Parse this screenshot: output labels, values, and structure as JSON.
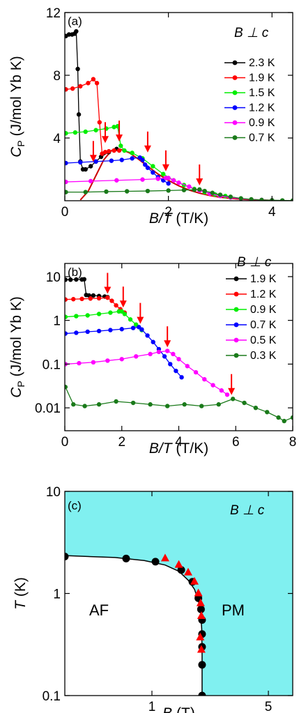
{
  "chart_data": [
    {
      "panel": "a",
      "panel_label": "(a)",
      "type": "line",
      "title": "",
      "xlabel": "B/T (T/K)",
      "ylabel": "C_P (J/mol Yb K)",
      "x_scale": "linear",
      "y_scale": "linear",
      "xlim": [
        0,
        4.4
      ],
      "ylim": [
        0,
        12
      ],
      "xticks": [
        0,
        2,
        4
      ],
      "xtick_labels": [
        "0",
        "2",
        "4"
      ],
      "yticks": [
        4,
        8,
        12
      ],
      "ytick_labels": [
        "4",
        "8",
        "12"
      ],
      "legend_title": "B ⊥ c",
      "legend_position": "right",
      "series": [
        {
          "name": "2.3 K",
          "color": "#000000",
          "x": [
            0.02,
            0.08,
            0.14,
            0.19,
            0.22,
            0.25,
            0.27,
            0.3,
            0.35,
            0.4,
            0.5,
            0.6,
            0.7,
            0.85,
            1.0
          ],
          "y": [
            10.5,
            10.6,
            10.6,
            10.65,
            10.8,
            8.4,
            5.5,
            2.5,
            2.0,
            2.0,
            2.2,
            2.5,
            2.8,
            3.1,
            3.3
          ]
        },
        {
          "name": "1.9 K",
          "color": "#ff0000",
          "x": [
            0.02,
            0.15,
            0.3,
            0.45,
            0.55,
            0.62,
            0.67,
            0.72,
            0.78,
            0.85,
            0.95,
            1.05
          ],
          "y": [
            7.1,
            7.15,
            7.3,
            7.5,
            7.75,
            7.5,
            5.0,
            3.0,
            3.1,
            3.15,
            3.2,
            3.2
          ]
        },
        {
          "name": "1.5 K",
          "color": "#00ee00",
          "x": [
            0.02,
            0.2,
            0.4,
            0.6,
            0.8,
            0.95,
            1.02,
            1.08,
            1.15,
            1.3,
            1.5,
            1.7,
            1.9,
            2.1,
            2.3,
            2.5,
            2.7,
            2.9,
            3.1
          ],
          "y": [
            4.3,
            4.35,
            4.4,
            4.5,
            4.6,
            4.7,
            4.75,
            3.5,
            3.2,
            3.05,
            2.7,
            2.2,
            1.7,
            1.3,
            1.0,
            0.75,
            0.55,
            0.4,
            0.3
          ]
        },
        {
          "name": "1.2 K",
          "color": "#0000ff",
          "x": [
            0.02,
            0.3,
            0.6,
            0.9,
            1.1,
            1.3,
            1.45,
            1.5,
            1.55,
            1.6,
            1.7,
            1.8,
            1.9,
            2.0
          ],
          "y": [
            2.4,
            2.45,
            2.5,
            2.55,
            2.6,
            2.7,
            2.75,
            2.6,
            2.3,
            2.1,
            1.8,
            1.5,
            1.3,
            1.1
          ]
        },
        {
          "name": "0.9 K",
          "color": "#ff00ff",
          "x": [
            0.02,
            0.5,
            1.0,
            1.5,
            1.8,
            1.95,
            2.0,
            2.1,
            2.2,
            2.4,
            2.6,
            2.8,
            3.0,
            3.2,
            3.4,
            3.6,
            3.8,
            4.0
          ],
          "y": [
            1.2,
            1.25,
            1.3,
            1.35,
            1.4,
            1.45,
            1.45,
            1.3,
            1.15,
            0.9,
            0.65,
            0.45,
            0.3,
            0.2,
            0.13,
            0.08,
            0.05,
            0.03
          ]
        },
        {
          "name": "0.7 K",
          "color": "#1a7a1a",
          "x": [
            0.02,
            0.4,
            0.8,
            1.2,
            1.6,
            2.0,
            2.3,
            2.5,
            2.6,
            2.7,
            2.85,
            3.0,
            3.2,
            3.4,
            3.6,
            3.8,
            4.0,
            4.2,
            4.4
          ],
          "y": [
            0.55,
            0.55,
            0.58,
            0.6,
            0.62,
            0.65,
            0.68,
            0.7,
            0.72,
            0.62,
            0.5,
            0.38,
            0.25,
            0.15,
            0.09,
            0.05,
            0.03,
            0.02,
            0.01
          ]
        }
      ],
      "model_curve": {
        "color": "#cc0000",
        "x": [
          0.3,
          0.45,
          0.6,
          0.75,
          0.9,
          1.0,
          1.1,
          1.25,
          1.4,
          1.6,
          1.8,
          2.0,
          2.2,
          2.4,
          2.6,
          2.8,
          3.0,
          3.3,
          3.6,
          4.0
        ],
        "y": [
          0.05,
          0.6,
          1.6,
          2.6,
          3.2,
          3.3,
          3.25,
          3.05,
          2.7,
          2.2,
          1.7,
          1.3,
          0.95,
          0.68,
          0.48,
          0.33,
          0.22,
          0.12,
          0.06,
          0.02
        ]
      },
      "arrows": {
        "color": "#ff0000",
        "x": [
          0.55,
          0.78,
          1.05,
          1.6,
          1.95,
          2.6
        ],
        "y": [
          2.3,
          3.5,
          3.6,
          2.9,
          1.7,
          0.8
        ]
      }
    },
    {
      "panel": "b",
      "panel_label": "(b)",
      "type": "line",
      "title": "",
      "xlabel": "B/T (T/K)",
      "ylabel": "C_P (J/mol Yb K)",
      "x_scale": "linear",
      "y_scale": "log",
      "xlim": [
        0,
        8
      ],
      "ylim": [
        0.003,
        20
      ],
      "xticks": [
        0,
        2,
        4,
        6,
        8
      ],
      "xtick_labels": [
        "0",
        "2",
        "4",
        "6",
        "8"
      ],
      "yticks": [
        0.01,
        0.1,
        1,
        10
      ],
      "ytick_labels": [
        "0.01",
        "0.1",
        "1",
        "10"
      ],
      "legend_title": "B ⊥ c",
      "legend_position": "top-right",
      "series": [
        {
          "name": "1.9 K",
          "color": "#000000",
          "x": [
            0.02,
            0.2,
            0.4,
            0.6,
            0.68,
            0.75,
            0.85,
            1.0,
            1.2,
            1.4,
            1.5
          ],
          "y": [
            8.5,
            8.5,
            8.6,
            8.6,
            8.7,
            3.8,
            3.7,
            3.7,
            3.6,
            3.5,
            3.4
          ]
        },
        {
          "name": "1.2 K",
          "color": "#ff0000",
          "x": [
            0.02,
            0.3,
            0.6,
            0.9,
            1.2,
            1.5,
            1.65,
            1.8,
            1.95,
            2.1
          ],
          "y": [
            3.0,
            3.05,
            3.1,
            3.15,
            3.2,
            3.3,
            2.8,
            2.2,
            1.8,
            1.5
          ]
        },
        {
          "name": "0.9 K",
          "color": "#00ee00",
          "x": [
            0.02,
            0.4,
            0.8,
            1.2,
            1.6,
            1.9,
            2.0,
            2.1,
            2.3,
            2.5,
            2.7
          ],
          "y": [
            1.2,
            1.25,
            1.3,
            1.4,
            1.5,
            1.6,
            1.6,
            1.4,
            1.05,
            0.8,
            0.6
          ]
        },
        {
          "name": "0.7 K",
          "color": "#0000ff",
          "x": [
            0.02,
            0.4,
            0.8,
            1.2,
            1.6,
            2.0,
            2.4,
            2.6,
            2.7,
            2.9,
            3.1,
            3.3,
            3.5,
            3.7,
            3.9,
            4.1
          ],
          "y": [
            0.5,
            0.52,
            0.55,
            0.57,
            0.6,
            0.63,
            0.67,
            0.7,
            0.62,
            0.45,
            0.32,
            0.22,
            0.15,
            0.1,
            0.07,
            0.05
          ]
        },
        {
          "name": "0.5 K",
          "color": "#ff00ff",
          "x": [
            0.02,
            0.5,
            1.0,
            1.5,
            2.0,
            2.5,
            3.0,
            3.3,
            3.6,
            3.8,
            4.0,
            4.3,
            4.6,
            4.9,
            5.2,
            5.5,
            5.7
          ],
          "y": [
            0.1,
            0.105,
            0.11,
            0.12,
            0.13,
            0.15,
            0.17,
            0.19,
            0.2,
            0.17,
            0.13,
            0.09,
            0.065,
            0.045,
            0.033,
            0.025,
            0.02
          ]
        },
        {
          "name": "0.3 K",
          "color": "#1a7a1a",
          "x": [
            0.02,
            0.3,
            0.7,
            1.2,
            1.8,
            2.4,
            3.0,
            3.6,
            4.2,
            4.8,
            5.4,
            5.9,
            6.3,
            6.7,
            7.1,
            7.5,
            7.7,
            8.0
          ],
          "y": [
            0.03,
            0.012,
            0.011,
            0.012,
            0.014,
            0.013,
            0.012,
            0.011,
            0.012,
            0.011,
            0.012,
            0.016,
            0.013,
            0.01,
            0.008,
            0.006,
            0.005,
            0.006
          ]
        }
      ],
      "arrows": {
        "color": "#ff0000",
        "x": [
          1.5,
          2.05,
          2.65,
          3.6,
          5.85
        ],
        "y": [
          3.5,
          1.7,
          0.72,
          0.21,
          0.017
        ]
      }
    },
    {
      "panel": "c",
      "panel_label": "(c)",
      "type": "scatter",
      "title": "",
      "xlabel": "B (T)",
      "ylabel": "T (K)",
      "x_scale": "log",
      "y_scale": "log",
      "xlim": [
        0.3,
        7
      ],
      "ylim": [
        0.1,
        10
      ],
      "xticks": [
        1,
        5
      ],
      "xtick_labels": [
        "1",
        "5"
      ],
      "yticks": [
        0.1,
        1,
        10
      ],
      "ytick_labels": [
        "0.1",
        "1",
        "10"
      ],
      "field_label": "B ⊥ c",
      "regions": [
        {
          "label": "AF",
          "color": "#ffffff"
        },
        {
          "label": "PM",
          "color": "#80f0f0"
        }
      ],
      "series": [
        {
          "marker": "circle",
          "color": "#000000",
          "x": [
            0.3,
            0.7,
            1.05,
            1.5,
            1.75,
            1.9,
            1.97,
            2.0,
            2.0,
            2.0,
            2.0,
            2.0
          ],
          "y": [
            2.3,
            2.2,
            2.05,
            1.7,
            1.3,
            0.9,
            0.7,
            0.55,
            0.4,
            0.3,
            0.2,
            0.1
          ]
        },
        {
          "marker": "triangle",
          "color": "#ff0000",
          "x": [
            1.2,
            1.45,
            1.65,
            1.8,
            1.9,
            1.96,
            1.98,
            1.95,
            1.98
          ],
          "y": [
            2.2,
            1.9,
            1.6,
            1.3,
            1.0,
            0.8,
            0.6,
            0.37,
            0.28
          ]
        }
      ],
      "phase_boundary": {
        "color": "#000000",
        "x": [
          0.3,
          0.6,
          0.9,
          1.2,
          1.45,
          1.65,
          1.8,
          1.9,
          1.96,
          1.99,
          2.0,
          2.0
        ],
        "y": [
          2.35,
          2.25,
          2.1,
          1.9,
          1.65,
          1.35,
          1.1,
          0.85,
          0.65,
          0.45,
          0.25,
          0.1
        ]
      }
    }
  ]
}
